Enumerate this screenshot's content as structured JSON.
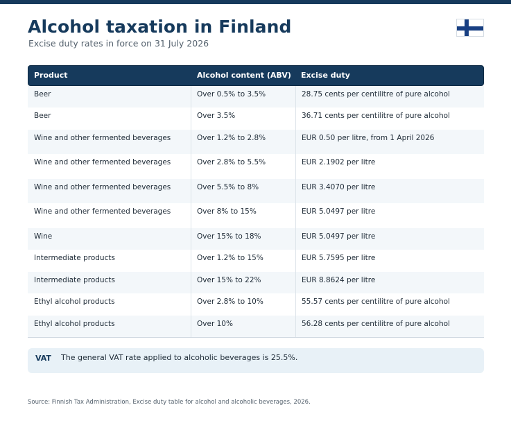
{
  "header": {
    "title": "Alcohol taxation in Finland",
    "subtitle": "Excise duty rates in force on 31 July 2026",
    "flag_icon": "finland-flag-icon"
  },
  "table": {
    "columns": [
      "Product",
      "Alcohol content (ABV)",
      "Excise duty"
    ],
    "rows": [
      {
        "product": "Beer",
        "abv": "Over 0.5% to 3.5%",
        "duty": "28.75 cents per centilitre of pure alcohol"
      },
      {
        "product": "Beer",
        "abv": "Over 3.5%",
        "duty": "36.71 cents per centilitre of pure alcohol"
      },
      {
        "product": "Wine and other fermented beverages",
        "abv": "Over 1.2% to 2.8%",
        "duty": "EUR 0.50 per litre, from 1 April 2026"
      },
      {
        "product": "Wine and other fermented beverages",
        "abv": "Over 2.8% to 5.5%",
        "duty": "EUR 2.1902 per litre"
      },
      {
        "product": "Wine and other fermented beverages",
        "abv": "Over 5.5% to 8%",
        "duty": "EUR 3.4070 per litre"
      },
      {
        "product": "Wine and other fermented beverages",
        "abv": "Over 8% to 15%",
        "duty": "EUR 5.0497 per litre"
      },
      {
        "product": "Wine",
        "abv": "Over 15% to 18%",
        "duty": "EUR 5.0497 per litre"
      },
      {
        "product": "Intermediate products",
        "abv": "Over 1.2% to 15%",
        "duty": "EUR 5.7595 per litre"
      },
      {
        "product": "Intermediate products",
        "abv": "Over 15% to 22%",
        "duty": "EUR 8.8624 per litre"
      },
      {
        "product": "Ethyl alcohol products",
        "abv": "Over 2.8% to 10%",
        "duty": "55.57 cents per centilitre of pure alcohol"
      },
      {
        "product": "Ethyl alcohol products",
        "abv": "Over 10%",
        "duty": "56.28 cents per centilitre of pure alcohol"
      }
    ]
  },
  "vat": {
    "label": "VAT",
    "text": "The general VAT rate applied to alcoholic beverages is 25.5%."
  },
  "footer": {
    "source": "Source: Finnish Tax Administration, Excise duty table for alcohol and alcoholic beverages, 2026."
  },
  "colors": {
    "accent": "#163a5c",
    "row_alt": "#f3f7fa",
    "vat_bg": "#e8f1f7"
  }
}
